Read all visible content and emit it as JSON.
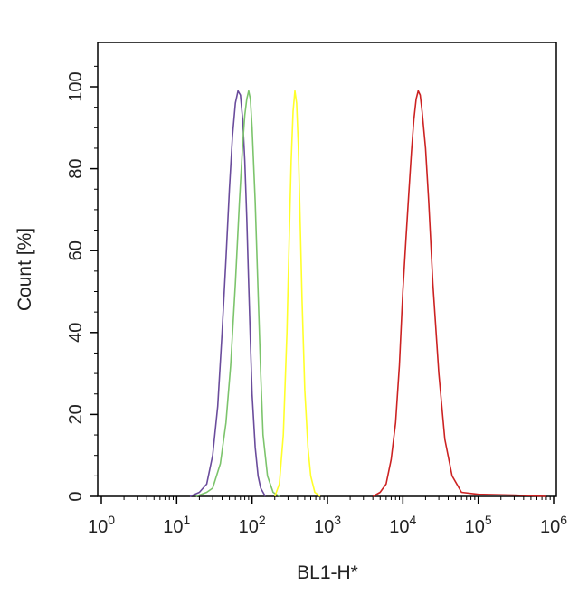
{
  "chart_data": {
    "type": "line",
    "xlabel": "BL1-H*",
    "ylabel": "Count  [%]",
    "xscale": "log",
    "xlim": [
      1,
      1000000
    ],
    "ylim": [
      0,
      110
    ],
    "x_ticks": [
      {
        "base": "10",
        "exp": "0",
        "value": 1
      },
      {
        "base": "10",
        "exp": "1",
        "value": 10
      },
      {
        "base": "10",
        "exp": "2",
        "value": 100
      },
      {
        "base": "10",
        "exp": "3",
        "value": 1000
      },
      {
        "base": "10",
        "exp": "4",
        "value": 10000
      },
      {
        "base": "10",
        "exp": "5",
        "value": 100000
      },
      {
        "base": "10",
        "exp": "6",
        "value": 1000000
      }
    ],
    "y_ticks": [
      "0",
      "20",
      "40",
      "60",
      "80",
      "100"
    ],
    "series": [
      {
        "color": "#6a4c9c",
        "x": [
          15,
          20,
          25,
          30,
          35,
          40,
          45,
          50,
          55,
          60,
          65,
          70,
          75,
          80,
          85,
          90,
          95,
          100,
          110,
          120,
          130,
          150
        ],
        "y": [
          0,
          1,
          3,
          10,
          22,
          40,
          58,
          75,
          88,
          96,
          99,
          98,
          92,
          82,
          68,
          52,
          38,
          25,
          12,
          5,
          2,
          0
        ]
      },
      {
        "color": "#7cc46c",
        "x": [
          18,
          25,
          30,
          38,
          45,
          52,
          60,
          68,
          75,
          80,
          85,
          90,
          95,
          100,
          110,
          120,
          130,
          140,
          160,
          190,
          230
        ],
        "y": [
          0,
          1,
          2,
          8,
          18,
          32,
          52,
          72,
          86,
          93,
          97,
          99,
          97,
          90,
          72,
          50,
          30,
          15,
          5,
          1,
          0
        ]
      },
      {
        "color": "#ffff2a",
        "x": [
          200,
          230,
          260,
          290,
          310,
          330,
          350,
          370,
          390,
          410,
          430,
          460,
          500,
          550,
          600,
          680,
          800
        ],
        "y": [
          0,
          3,
          15,
          40,
          62,
          82,
          94,
          99,
          96,
          86,
          70,
          48,
          26,
          12,
          5,
          1,
          0
        ]
      },
      {
        "color": "#cc2222",
        "x": [
          4000,
          5000,
          6000,
          7000,
          8000,
          9000,
          10000,
          11000,
          12000,
          13000,
          14000,
          15000,
          16000,
          17000,
          18000,
          20000,
          22000,
          25000,
          30000,
          36000,
          45000,
          60000,
          100000,
          300000,
          800000
        ],
        "y": [
          0,
          1,
          3,
          9,
          18,
          32,
          50,
          63,
          74,
          84,
          92,
          97,
          99,
          98,
          94,
          85,
          72,
          52,
          30,
          14,
          5,
          1,
          0.5,
          0.3,
          0
        ]
      }
    ]
  }
}
